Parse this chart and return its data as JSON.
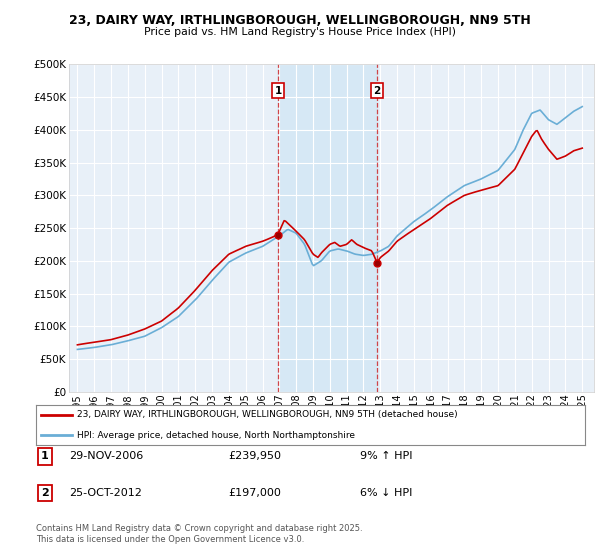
{
  "title": "23, DAIRY WAY, IRTHLINGBOROUGH, WELLINGBOROUGH, NN9 5TH",
  "subtitle": "Price paid vs. HM Land Registry's House Price Index (HPI)",
  "background_color": "#ffffff",
  "plot_bg_color": "#e8f0f8",
  "grid_color": "#ffffff",
  "sale1_date_num": 2006.92,
  "sale1_price": 239950,
  "sale2_date_num": 2012.81,
  "sale2_price": 197000,
  "hpi_line_color": "#6aaed6",
  "price_line_color": "#cc0000",
  "vline_color": "#cc0000",
  "highlight_bg": "#d6e8f5",
  "legend_label_price": "23, DAIRY WAY, IRTHLINGBOROUGH, WELLINGBOROUGH, NN9 5TH (detached house)",
  "legend_label_hpi": "HPI: Average price, detached house, North Northamptonshire",
  "sale1_col1": "29-NOV-2006",
  "sale1_col2": "£239,950",
  "sale1_col3": "9% ↑ HPI",
  "sale2_col1": "25-OCT-2012",
  "sale2_col2": "£197,000",
  "sale2_col3": "6% ↓ HPI",
  "footer": "Contains HM Land Registry data © Crown copyright and database right 2025.\nThis data is licensed under the Open Government Licence v3.0.",
  "ylim": [
    0,
    500000
  ],
  "yticks": [
    0,
    50000,
    100000,
    150000,
    200000,
    250000,
    300000,
    350000,
    400000,
    450000,
    500000
  ],
  "xlim_start": 1994.5,
  "xlim_end": 2025.7
}
